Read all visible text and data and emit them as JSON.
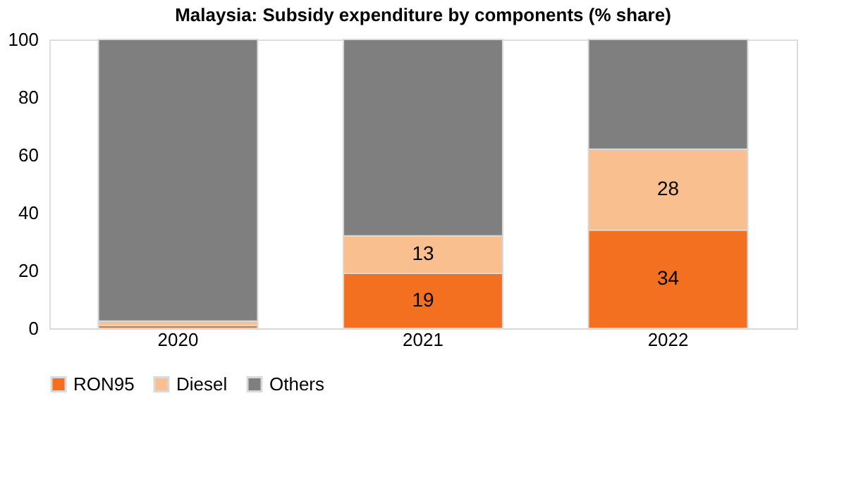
{
  "chart_data": {
    "type": "bar",
    "stacked": true,
    "title": "Malaysia: Subsidy expenditure by components (% share)",
    "categories": [
      "2020",
      "2021",
      "2022"
    ],
    "series": [
      {
        "name": "RON95",
        "color": "#f37021",
        "values": [
          1,
          19,
          34
        ],
        "value_labels": [
          null,
          "19",
          "34"
        ]
      },
      {
        "name": "Diesel",
        "color": "#f9bf8f",
        "values": [
          1.5,
          13,
          28
        ],
        "value_labels": [
          null,
          "13",
          "28"
        ]
      },
      {
        "name": "Others",
        "color": "#7f7f7f",
        "values": [
          97.5,
          68,
          38
        ],
        "value_labels": [
          null,
          null,
          null
        ]
      }
    ],
    "ylim": [
      0,
      100
    ],
    "yticks": [
      0,
      20,
      40,
      60,
      80,
      100
    ],
    "grid": false,
    "legend": "bottom"
  }
}
